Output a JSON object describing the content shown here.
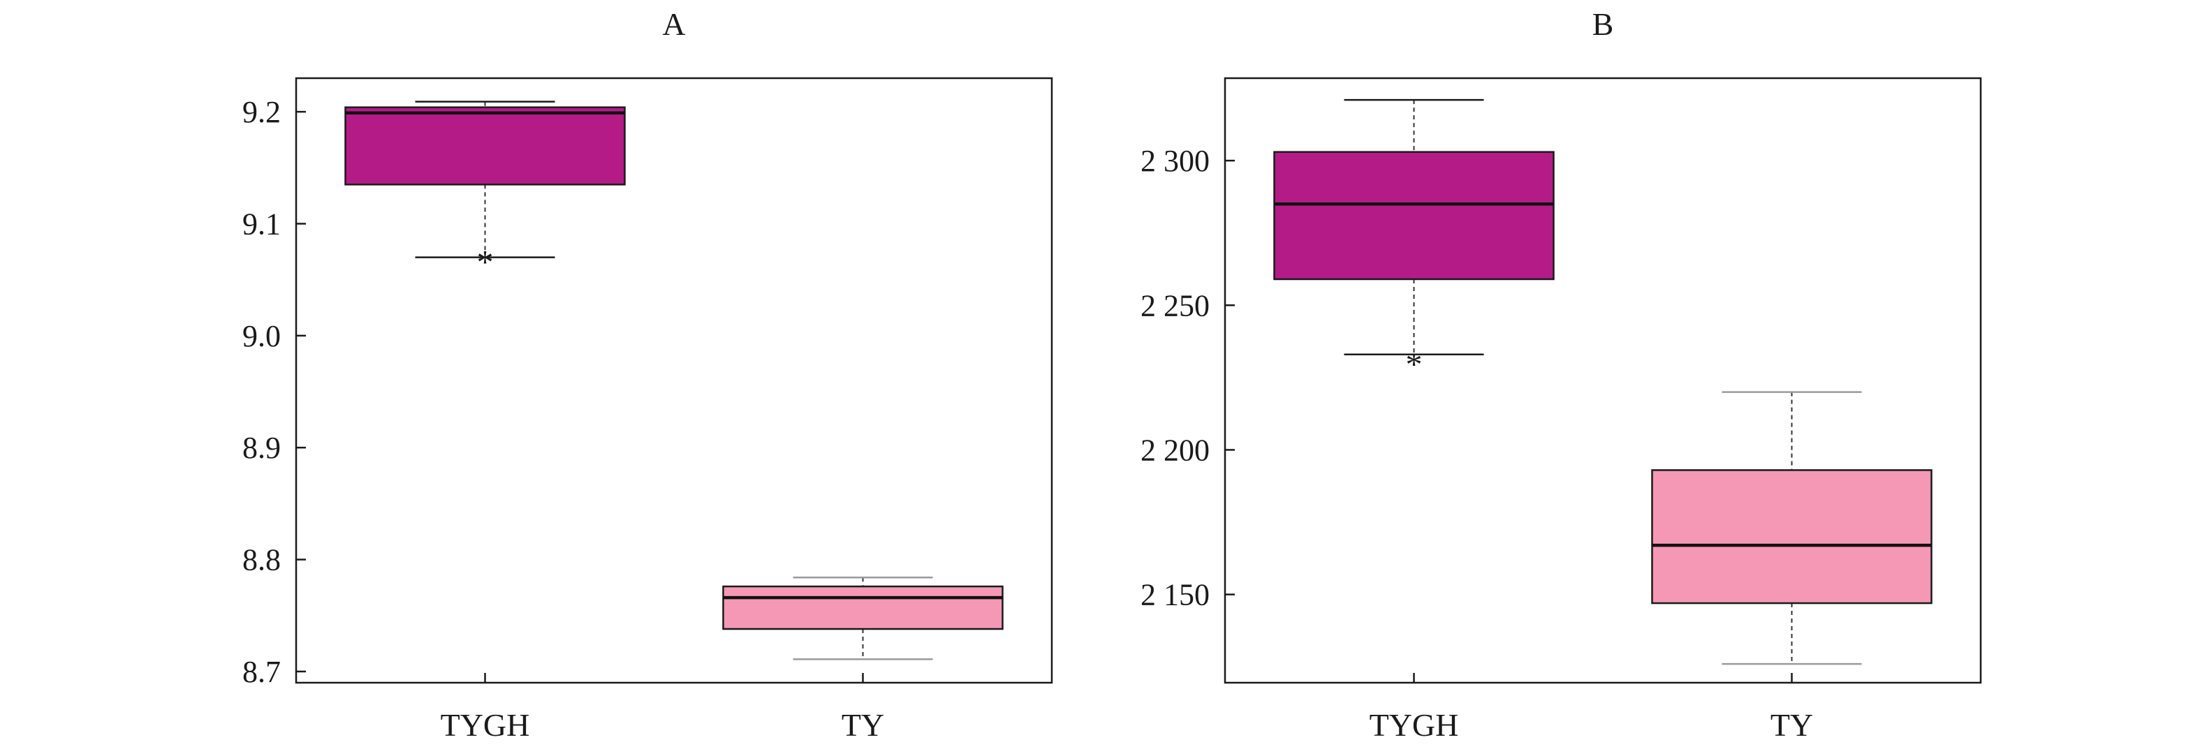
{
  "chart_data": [
    {
      "type": "box",
      "title": "A",
      "categories": [
        "TYGH",
        "TY"
      ],
      "ylim": [
        8.69,
        9.23
      ],
      "yticks": [
        9.2,
        9.1,
        9.0,
        8.9,
        8.8,
        8.7
      ],
      "ytick_labels": [
        "9.2",
        "9.1",
        "9.0",
        "8.9",
        "8.8",
        "8.7"
      ],
      "boxes": [
        {
          "category": "TYGH",
          "whisker_low": 9.07,
          "q1": 9.135,
          "median": 9.199,
          "q3": 9.204,
          "whisker_high": 9.209,
          "outliers": [
            9.072
          ],
          "color": "#b51b87"
        },
        {
          "category": "TY",
          "whisker_low": 8.711,
          "q1": 8.738,
          "median": 8.766,
          "q3": 8.776,
          "whisker_high": 8.784,
          "outliers": [],
          "color": "#f598b5"
        }
      ]
    },
    {
      "type": "box",
      "title": "B",
      "categories": [
        "TYGH",
        "TY"
      ],
      "ylim": [
        2119.5,
        2328.5
      ],
      "yticks": [
        2300,
        2250,
        2200,
        2150
      ],
      "ytick_labels": [
        "2 300",
        "2 250",
        "2 200",
        "2 150"
      ],
      "boxes": [
        {
          "category": "TYGH",
          "whisker_low": 2233,
          "q1": 2259,
          "median": 2285,
          "q3": 2303,
          "whisker_high": 2321,
          "outliers": [
            2232
          ],
          "color": "#b51b87"
        },
        {
          "category": "TY",
          "whisker_low": 2126,
          "q1": 2147,
          "median": 2167,
          "q3": 2193,
          "whisker_high": 2220,
          "outliers": [],
          "color": "#f598b5"
        }
      ]
    }
  ]
}
